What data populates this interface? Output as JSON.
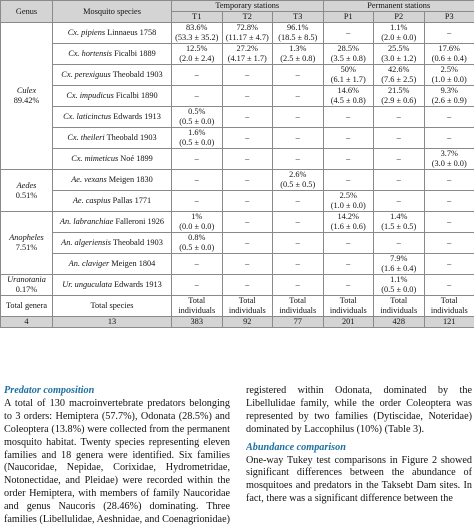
{
  "table": {
    "header": {
      "genus": "Genus",
      "species": "Mosquito species",
      "temporary": "Temporary stations",
      "permanent": "Permanent stations",
      "stations": [
        "T1",
        "T2",
        "T3",
        "P1",
        "P2",
        "P3"
      ]
    },
    "genera": [
      {
        "name": "Culex",
        "pct": "89.42%"
      },
      {
        "name": "Aedes",
        "pct": "0.51%"
      },
      {
        "name": "Anopheles",
        "pct": "7.51%"
      },
      {
        "name": "Uranotania",
        "pct": "0.17%"
      }
    ],
    "rows": [
      {
        "sp_it": "Cx. pipiens",
        "auth": " Linnaeus 1758",
        "v": [
          [
            "83.6%",
            "(53.3 ± 35.2)"
          ],
          [
            "72.8%",
            "(11.17 ± 4.7)"
          ],
          [
            "96.1%",
            "(18.5 ± 8.5)"
          ],
          [
            "–"
          ],
          [
            "1.1%",
            "(2.0 ± 0.0)"
          ],
          [
            "–"
          ]
        ]
      },
      {
        "sp_it": "Cx. hortensis",
        "auth": " Ficalbi 1889",
        "v": [
          [
            "12.5%",
            "(2.0 ± 2.4)"
          ],
          [
            "27.2%",
            "(4.17 ± 1.7)"
          ],
          [
            "1.3%",
            "(2.5 ± 0.8)"
          ],
          [
            "28.5%",
            "(3.5 ± 0.8)"
          ],
          [
            "25.5%",
            "(3.0 ± 1.2)"
          ],
          [
            "17.6%",
            "(0.6 ± 0.4)"
          ]
        ]
      },
      {
        "sp_it": "Cx. perexiguus",
        "auth": " Theobald 1903",
        "v": [
          [
            "–"
          ],
          [
            "–"
          ],
          [
            "–"
          ],
          [
            "50%",
            "(6.1 ± 1.7)"
          ],
          [
            "42.6%",
            "(7.6 ± 2.5)"
          ],
          [
            "2.5%",
            "(1.0 ± 0.0)"
          ]
        ]
      },
      {
        "sp_it": "Cx. impudicus",
        "auth": " Ficalbi 1890",
        "v": [
          [
            "–"
          ],
          [
            "–"
          ],
          [
            "–"
          ],
          [
            "14.6%",
            "(4.5 ± 0.8)"
          ],
          [
            "21.5%",
            "(2.9 ± 0.6)"
          ],
          [
            "9.3%",
            "(2.6 ± 0.9)"
          ]
        ]
      },
      {
        "sp_it": "Cx. laticinctus",
        "auth": " Edwards 1913",
        "v": [
          [
            "0.5%",
            "(0.5 ± 0.0)"
          ],
          [
            "–"
          ],
          [
            "–"
          ],
          [
            "–"
          ],
          [
            "–"
          ],
          [
            "–"
          ]
        ]
      },
      {
        "sp_it": "Cx. theileri",
        "auth": " Theobald 1903",
        "v": [
          [
            "1.6%",
            "(0.5 ± 0.0)"
          ],
          [
            "–"
          ],
          [
            "–"
          ],
          [
            "–"
          ],
          [
            "–"
          ],
          [
            "–"
          ]
        ]
      },
      {
        "sp_it": "Cx. mimeticus",
        "auth": " Noé 1899",
        "v": [
          [
            "–"
          ],
          [
            "–"
          ],
          [
            "–"
          ],
          [
            "–"
          ],
          [
            "–"
          ],
          [
            "3.7%",
            "(3.0 ± 0.0)"
          ]
        ]
      },
      {
        "sp_it": "Ae. vexans",
        "auth": " Meigen 1830",
        "v": [
          [
            "–"
          ],
          [
            "–"
          ],
          [
            "2.6%",
            "(0.5 ± 0.5)"
          ],
          [
            "–"
          ],
          [
            "–"
          ],
          [
            "–"
          ]
        ]
      },
      {
        "sp_it": "Ae. caspius",
        "auth": " Pallas 1771",
        "v": [
          [
            "–"
          ],
          [
            "–"
          ],
          [
            "–"
          ],
          [
            "2.5%",
            "(1.0 ± 0.0)"
          ],
          [
            "–"
          ],
          [
            "–"
          ]
        ]
      },
      {
        "sp_it": "An. labranchiae",
        "auth": " Falleroni 1926",
        "v": [
          [
            "1%",
            "(0.0 ± 0.0)"
          ],
          [
            "–"
          ],
          [
            "–"
          ],
          [
            "14.2%",
            "(1.6 ± 0.6)"
          ],
          [
            "1.4%",
            "(1.5 ± 0.5)"
          ],
          [
            "–"
          ]
        ]
      },
      {
        "sp_it": "An. algeriensis",
        "auth": " Theobald 1903",
        "v": [
          [
            "0.8%",
            "(0.5 ± 0.0)"
          ],
          [
            "–"
          ],
          [
            "–"
          ],
          [
            "–"
          ],
          [
            "–"
          ],
          [
            "–"
          ]
        ]
      },
      {
        "sp_it": "An. claviger",
        "auth": " Meigen 1804",
        "v": [
          [
            "–"
          ],
          [
            "–"
          ],
          [
            "–"
          ],
          [
            "–"
          ],
          [
            "7.9%",
            "(1.6 ± 0.4)"
          ],
          [
            "–"
          ]
        ]
      },
      {
        "sp_it": "Ur. unguculata",
        "auth": " Edwards 1913",
        "v": [
          [
            "–"
          ],
          [
            "–"
          ],
          [
            "–"
          ],
          [
            "–"
          ],
          [
            "1.1%",
            "(0.5 ± 0.0)"
          ],
          [
            "–"
          ]
        ]
      }
    ],
    "totals": {
      "genera_label": "Total genera",
      "species_label": "Total species",
      "individuals_label": "Total individuals"
    },
    "summary": {
      "genera": "4",
      "species": "13",
      "counts": [
        "383",
        "92",
        "77",
        "201",
        "428",
        "121"
      ]
    }
  },
  "text": {
    "predator_heading": "Predator composition",
    "predator_body": "A total of 130 macroinvertebrate predators belonging to 3 orders: Hemiptera (57.7%), Odonata (28.5%) and Coleoptera (13.8%) were collected from the permanent mosquito habitat. Twenty species representing eleven families and 18 genera were identified. Six families (Naucoridae, Nepidae, Corixidae, Hydrometridae, Notonectidae, and Pleidae) were recorded within the order Hemiptera, with members of family Naucoridae and genus Naucoris (28.46%) dominating. Three families (Libellulidae, Aeshnidae, and Coenagrionidae) were",
    "right_top": "registered within Odonata, dominated by the Libellulidae family, while the order Coleoptera was represented by two families (Dytiscidae, Noteridae) dominated by Laccophilus (10%) (Table 3).",
    "abundance_heading": "Abundance comparison",
    "abundance_body": "One-way Tukey test comparisons in Figure 2 showed significant differences between the abundance of mosquitoes and predators in the Taksebt Dam sites. In fact, there was a significant difference between the"
  }
}
